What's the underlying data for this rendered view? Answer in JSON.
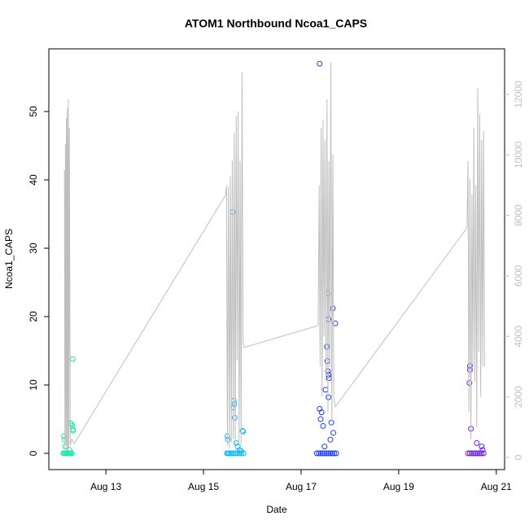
{
  "chart_data": {
    "type": "scatter",
    "title": "ATOM1 Northbound Ncoa1_CAPS",
    "xlabel": "Date",
    "ylabel": "Ncoa1_CAPS",
    "xlim": [
      11.83,
      21.17
    ],
    "xticks": [
      {
        "value": 13,
        "label": "Aug 13"
      },
      {
        "value": 15,
        "label": "Aug 15"
      },
      {
        "value": 17,
        "label": "Aug 17"
      },
      {
        "value": 19,
        "label": "Aug 19"
      },
      {
        "value": 21,
        "label": "Aug 21"
      }
    ],
    "ylim": [
      -2.38,
      59.17
    ],
    "yticks": [
      0,
      10,
      20,
      30,
      40,
      50
    ],
    "y2lim": [
      -404,
      13506
    ],
    "y2ticks": [
      0,
      2000,
      4000,
      6000,
      8000,
      10000,
      12000
    ],
    "y2color": "#c0c0c0",
    "series": [
      {
        "color": "#1fe8a8",
        "x": [
          12.13,
          12.14,
          12.16,
          12.18,
          12.2,
          12.22,
          12.24,
          12.26,
          12.28,
          12.3,
          12.14,
          12.15,
          12.17,
          12.25,
          12.27,
          12.29,
          12.31,
          12.32,
          12.33,
          12.32
        ],
        "values": [
          0,
          0,
          0,
          0,
          0,
          0,
          0,
          0,
          0,
          0,
          2.5,
          2,
          1,
          0.5,
          4.4,
          4.3,
          4,
          3.5,
          3.3,
          13.8
        ]
      },
      {
        "color": "#1ab8f0",
        "x": [
          15.48,
          15.5,
          15.52,
          15.55,
          15.58,
          15.62,
          15.66,
          15.7,
          15.74,
          15.78,
          15.82,
          15.6,
          15.62,
          15.63,
          15.61,
          15.64,
          15.8,
          15.81,
          15.49,
          15.5,
          15.67,
          15.7,
          15.74,
          15.77
        ],
        "values": [
          0,
          0,
          0,
          0,
          0,
          0,
          0,
          0,
          0,
          0,
          0,
          35.3,
          7.7,
          7.2,
          6.7,
          5.2,
          3.3,
          3.2,
          2.5,
          2,
          1.5,
          1,
          0.5,
          0.3
        ]
      },
      {
        "color": "#1f3ef0",
        "x": [
          17.32,
          17.36,
          17.4,
          17.44,
          17.48,
          17.52,
          17.56,
          17.6,
          17.64,
          17.68,
          17.72,
          17.38,
          17.55,
          17.65,
          17.56,
          17.7,
          17.53,
          17.54,
          17.55,
          17.56,
          17.57,
          17.5,
          17.56,
          17.38,
          17.42,
          17.4,
          17.62,
          17.45,
          17.66,
          17.6,
          17.48
        ],
        "values": [
          0,
          0,
          0,
          0,
          0,
          0,
          0,
          0,
          0,
          0,
          0,
          57,
          23.4,
          21.2,
          19.6,
          19,
          15.6,
          13.5,
          12,
          11.5,
          11,
          9.3,
          8.2,
          6.5,
          6,
          5,
          4.5,
          4,
          3,
          2,
          1
        ]
      },
      {
        "color": "#6a1ff0",
        "x": [
          20.42,
          20.46,
          20.5,
          20.54,
          20.58,
          20.62,
          20.66,
          20.7,
          20.74,
          20.46,
          20.46,
          20.45,
          20.48,
          20.6,
          20.7,
          20.72
        ],
        "values": [
          0,
          0,
          0,
          0,
          0,
          0,
          0,
          0,
          0,
          12.8,
          12.2,
          10.3,
          3.6,
          1.5,
          1,
          0.5
        ]
      },
      {
        "color": "#bebebe",
        "axis": "y2",
        "x": [
          12.15,
          12.16,
          12.17,
          12.18,
          12.19,
          12.2,
          12.21,
          12.22,
          12.23,
          12.24,
          12.25,
          12.27,
          12.3,
          12.35,
          15.45,
          15.47,
          15.49,
          15.51,
          15.53,
          15.55,
          15.57,
          15.59,
          15.61,
          15.63,
          15.65,
          15.67,
          15.69,
          15.71,
          15.73,
          15.75,
          15.77,
          15.79,
          15.81,
          15.83,
          17.35,
          17.37,
          17.39,
          17.41,
          17.43,
          17.45,
          17.47,
          17.49,
          17.51,
          17.53,
          17.55,
          17.57,
          17.59,
          17.61,
          17.63,
          17.65,
          17.67,
          17.7,
          20.4,
          20.42,
          20.44,
          20.46,
          20.48,
          20.5,
          20.52,
          20.54,
          20.56,
          20.58,
          20.6,
          20.62,
          20.64,
          20.66,
          20.68,
          20.7,
          20.72,
          20.74,
          20.76
        ],
        "values": [
          9500,
          300,
          10358,
          400,
          11219,
          300,
          11542,
          200,
          11837,
          300,
          10900,
          400,
          600,
          457,
          8663,
          9000,
          400,
          8932,
          300,
          9300,
          500,
          9820,
          600,
          10734,
          400,
          11273,
          3200,
          11434,
          500,
          9800,
          400,
          12725,
          3800,
          3632,
          4358,
          9000,
          3000,
          10896,
          2000,
          11165,
          4000,
          10500,
          2500,
          11837,
          1500,
          9800,
          3000,
          13048,
          1200,
          10000,
          2000,
          1668,
          7587,
          9793,
          1500,
          9200,
          600,
          8700,
          3000,
          10896,
          2500,
          9000,
          1000,
          12214,
          3500,
          11353,
          2000,
          10500,
          3000,
          10800,
          3013
        ]
      }
    ]
  }
}
